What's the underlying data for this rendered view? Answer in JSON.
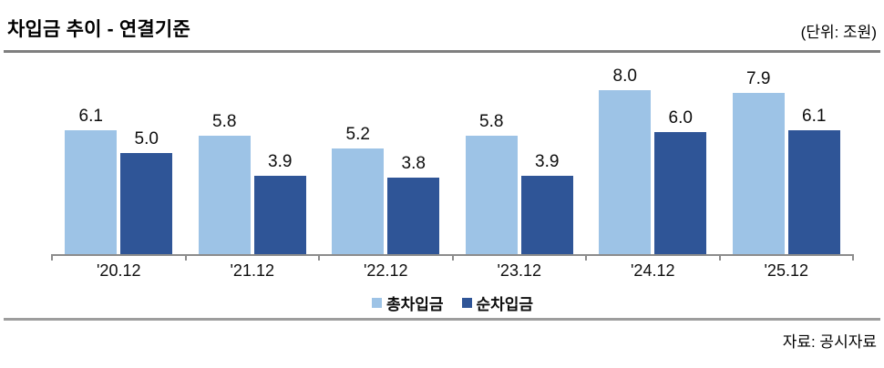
{
  "header": {
    "title": "차입금 추이 - 연결기준",
    "unit_label": "(단위: 조원)"
  },
  "source": "자료: 공시자료",
  "chart_data": {
    "type": "bar",
    "title": "차입금 추이 - 연결기준",
    "unit": "조원",
    "categories": [
      "'20.12",
      "'21.12",
      "'22.12",
      "'23.12",
      "'24.12",
      "'25.12"
    ],
    "series": [
      {
        "name": "총차입금",
        "color": "#9DC3E6",
        "values": [
          6.1,
          5.8,
          5.2,
          5.8,
          8.0,
          7.9
        ]
      },
      {
        "name": "순차입금",
        "color": "#2F5597",
        "values": [
          5.0,
          3.9,
          3.8,
          3.9,
          6.0,
          6.1
        ]
      }
    ],
    "ylim": [
      0,
      9.3
    ],
    "grid": false,
    "value_labels": true,
    "value_label_format": "one_decimal",
    "legend_position": "bottom"
  },
  "colors": {
    "total_borrowings": "#9DC3E6",
    "net_borrowings": "#2F5597",
    "title_rule": "#7f7f7f",
    "axis": "#8c8c8c",
    "bottom_rule": "#9d9d9d"
  }
}
